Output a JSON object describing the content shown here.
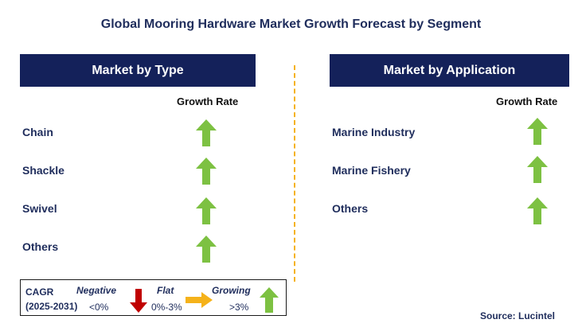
{
  "title": "Global Mooring Hardware Market Growth Forecast by Segment",
  "left_panel": {
    "header": "Market by Type",
    "column_header": "Growth Rate",
    "rows": [
      {
        "label": "Chain",
        "trend": "growing"
      },
      {
        "label": "Shackle",
        "trend": "growing"
      },
      {
        "label": "Swivel",
        "trend": "growing"
      },
      {
        "label": "Others",
        "trend": "growing"
      }
    ]
  },
  "right_panel": {
    "header": "Market by Application",
    "column_header": "Growth Rate",
    "rows": [
      {
        "label": "Marine Industry",
        "trend": "growing"
      },
      {
        "label": "Marine Fishery",
        "trend": "growing"
      },
      {
        "label": "Others",
        "trend": "growing"
      }
    ]
  },
  "legend": {
    "cagr_label": "CAGR",
    "period": "(2025-2031)",
    "negative": {
      "label": "Negative",
      "range": "<0%",
      "icon": "red-down-arrow-icon"
    },
    "flat": {
      "label": "Flat",
      "range": "0%-3%",
      "icon": "orange-right-arrow-icon"
    },
    "growing": {
      "label": "Growing",
      "range": ">3%",
      "icon": "green-up-arrow-icon"
    }
  },
  "source": "Source: Lucintel",
  "colors": {
    "header_bg": "#14215a",
    "growing": "#7dc142",
    "negative": "#c00000",
    "flat": "#f5b21a",
    "divider": "#f5b21a"
  }
}
